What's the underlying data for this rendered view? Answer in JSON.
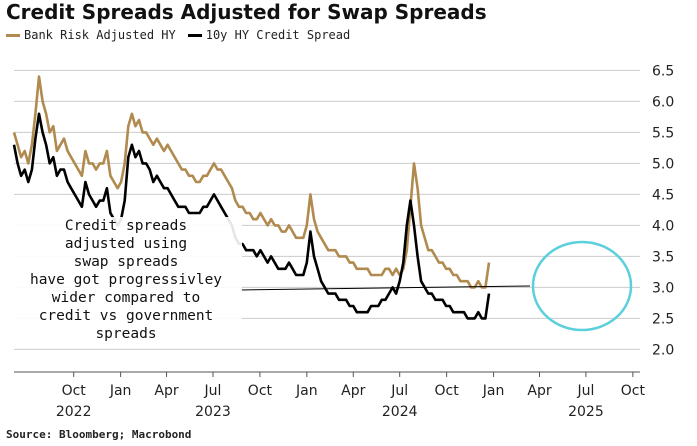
{
  "title": "Credit Spreads Adjusted for Swap Spreads",
  "source": "Source: Bloomberg; Macrobond",
  "annotation": [
    "Credit spreads",
    "adjusted using",
    "swap spreads",
    "have got progressivley",
    "wider compared to",
    "credit vs government",
    "spreads"
  ],
  "colors": {
    "bank": "#b08a4e",
    "hy": "#000000",
    "highlight": "#5ccfdc",
    "grid": "#cccccc"
  },
  "chart_data": {
    "type": "line",
    "x_start": "2022-06-06",
    "x_interval": "weekly",
    "ylim": [
      1.7,
      6.7
    ],
    "y_ticks": [
      2.0,
      2.5,
      3.0,
      3.5,
      4.0,
      4.5,
      5.0,
      5.5,
      6.0,
      6.5
    ],
    "x_ticks": [
      {
        "date": "2022-10-01",
        "month": "Oct",
        "year": "2022"
      },
      {
        "date": "2023-01-01",
        "month": "Jan",
        "year": ""
      },
      {
        "date": "2023-04-01",
        "month": "Apr",
        "year": ""
      },
      {
        "date": "2023-07-01",
        "month": "Jul",
        "year": "2023"
      },
      {
        "date": "2023-10-01",
        "month": "Oct",
        "year": ""
      },
      {
        "date": "2024-01-01",
        "month": "Jan",
        "year": ""
      },
      {
        "date": "2024-04-01",
        "month": "Apr",
        "year": ""
      },
      {
        "date": "2024-07-01",
        "month": "Jul",
        "year": "2024"
      },
      {
        "date": "2024-10-01",
        "month": "Oct",
        "year": ""
      },
      {
        "date": "2025-01-01",
        "month": "Jan",
        "year": ""
      },
      {
        "date": "2025-04-01",
        "month": "Apr",
        "year": ""
      },
      {
        "date": "2025-07-01",
        "month": "Jul",
        "year": "2025"
      },
      {
        "date": "2025-10-01",
        "month": "Oct",
        "year": ""
      }
    ],
    "series": [
      {
        "name": "Bank Risk Adjusted HY",
        "color": "#b08a4e",
        "values": [
          5.5,
          5.3,
          5.1,
          5.2,
          5.0,
          5.3,
          5.8,
          6.4,
          6.0,
          5.8,
          5.5,
          5.6,
          5.2,
          5.3,
          5.4,
          5.2,
          5.1,
          5.0,
          4.9,
          4.8,
          5.2,
          5.0,
          5.0,
          4.9,
          5.0,
          5.0,
          5.2,
          4.8,
          4.7,
          4.6,
          4.7,
          5.0,
          5.6,
          5.8,
          5.6,
          5.7,
          5.5,
          5.5,
          5.4,
          5.3,
          5.4,
          5.3,
          5.2,
          5.3,
          5.2,
          5.1,
          5.0,
          4.9,
          4.9,
          4.8,
          4.8,
          4.7,
          4.7,
          4.8,
          4.8,
          4.9,
          5.0,
          4.9,
          4.9,
          4.8,
          4.7,
          4.6,
          4.4,
          4.3,
          4.3,
          4.2,
          4.2,
          4.1,
          4.1,
          4.2,
          4.1,
          4.0,
          4.1,
          4.0,
          4.0,
          3.9,
          3.9,
          4.0,
          3.9,
          3.8,
          3.8,
          3.8,
          4.0,
          4.5,
          4.1,
          3.9,
          3.8,
          3.7,
          3.6,
          3.6,
          3.6,
          3.5,
          3.5,
          3.5,
          3.4,
          3.4,
          3.3,
          3.3,
          3.3,
          3.3,
          3.2,
          3.2,
          3.2,
          3.2,
          3.3,
          3.3,
          3.2,
          3.3,
          3.2,
          3.3,
          3.6,
          4.3,
          5.0,
          4.6,
          4.0,
          3.8,
          3.6,
          3.6,
          3.5,
          3.4,
          3.4,
          3.3,
          3.3,
          3.2,
          3.2,
          3.1,
          3.1,
          3.1,
          3.0,
          3.0,
          3.1,
          3.0,
          3.0,
          3.4
        ]
      },
      {
        "name": "10y HY Credit Spread",
        "color": "#000000",
        "values": [
          5.3,
          5.0,
          4.8,
          4.9,
          4.7,
          4.9,
          5.4,
          5.8,
          5.5,
          5.3,
          5.0,
          5.1,
          4.8,
          4.9,
          4.9,
          4.7,
          4.6,
          4.5,
          4.4,
          4.3,
          4.7,
          4.5,
          4.4,
          4.3,
          4.4,
          4.4,
          4.6,
          4.2,
          4.1,
          4.0,
          4.1,
          4.4,
          5.1,
          5.3,
          5.1,
          5.2,
          5.0,
          5.0,
          4.9,
          4.7,
          4.8,
          4.7,
          4.6,
          4.6,
          4.5,
          4.4,
          4.3,
          4.3,
          4.3,
          4.2,
          4.2,
          4.2,
          4.2,
          4.3,
          4.3,
          4.4,
          4.5,
          4.4,
          4.3,
          4.2,
          4.1,
          4.0,
          3.8,
          3.7,
          3.7,
          3.6,
          3.6,
          3.6,
          3.5,
          3.6,
          3.5,
          3.4,
          3.5,
          3.4,
          3.3,
          3.3,
          3.3,
          3.4,
          3.3,
          3.2,
          3.2,
          3.2,
          3.4,
          3.9,
          3.5,
          3.3,
          3.1,
          3.0,
          2.9,
          2.9,
          2.9,
          2.8,
          2.8,
          2.8,
          2.7,
          2.7,
          2.6,
          2.6,
          2.6,
          2.6,
          2.7,
          2.7,
          2.7,
          2.8,
          2.8,
          2.9,
          3.0,
          2.9,
          3.1,
          3.4,
          4.0,
          4.4,
          4.0,
          3.5,
          3.1,
          3.0,
          2.9,
          2.9,
          2.8,
          2.8,
          2.8,
          2.7,
          2.7,
          2.6,
          2.6,
          2.6,
          2.6,
          2.5,
          2.5,
          2.5,
          2.6,
          2.5,
          2.5,
          2.9
        ]
      }
    ]
  }
}
